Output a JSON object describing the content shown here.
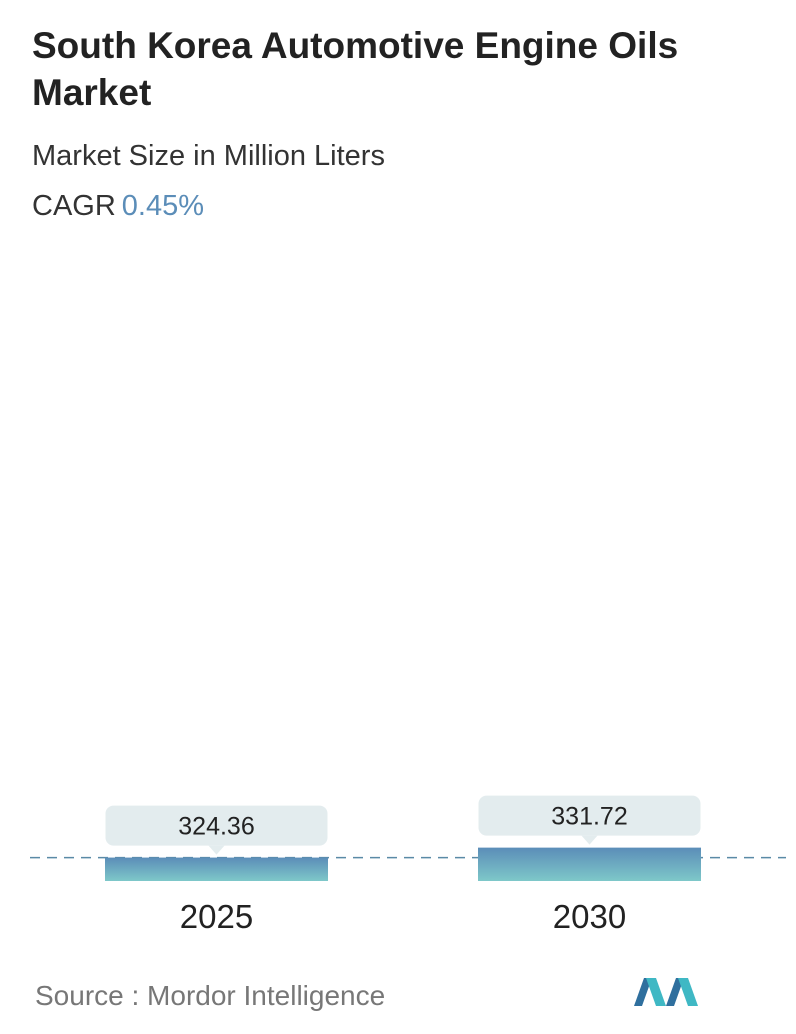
{
  "header": {
    "title": "South Korea Automotive Engine Oils Market",
    "subtitle": "Market Size in Million Liters",
    "cagr_label": "CAGR",
    "cagr_value": "0.45%"
  },
  "chart_data": {
    "type": "bar",
    "categories": [
      "2025",
      "2030"
    ],
    "values": [
      324.36,
      331.72
    ],
    "value_labels": [
      "324.36",
      "331.72"
    ],
    "title": "South Korea Automotive Engine Oils Market",
    "subtitle": "Market Size in Million Liters",
    "grid": false,
    "reference_line": "dashed line at the 2025 value"
  },
  "colors": {
    "bar_top": "#5b8db8",
    "bar_bottom": "#7ec8c9",
    "label_box": "#e3ecee",
    "dashed_line": "#5a8aa6",
    "cagr_value": "#5b8db8"
  },
  "footer": {
    "source": "Source :  Mordor Intelligence",
    "logo_icon": "mordor-intelligence-logo-icon"
  }
}
